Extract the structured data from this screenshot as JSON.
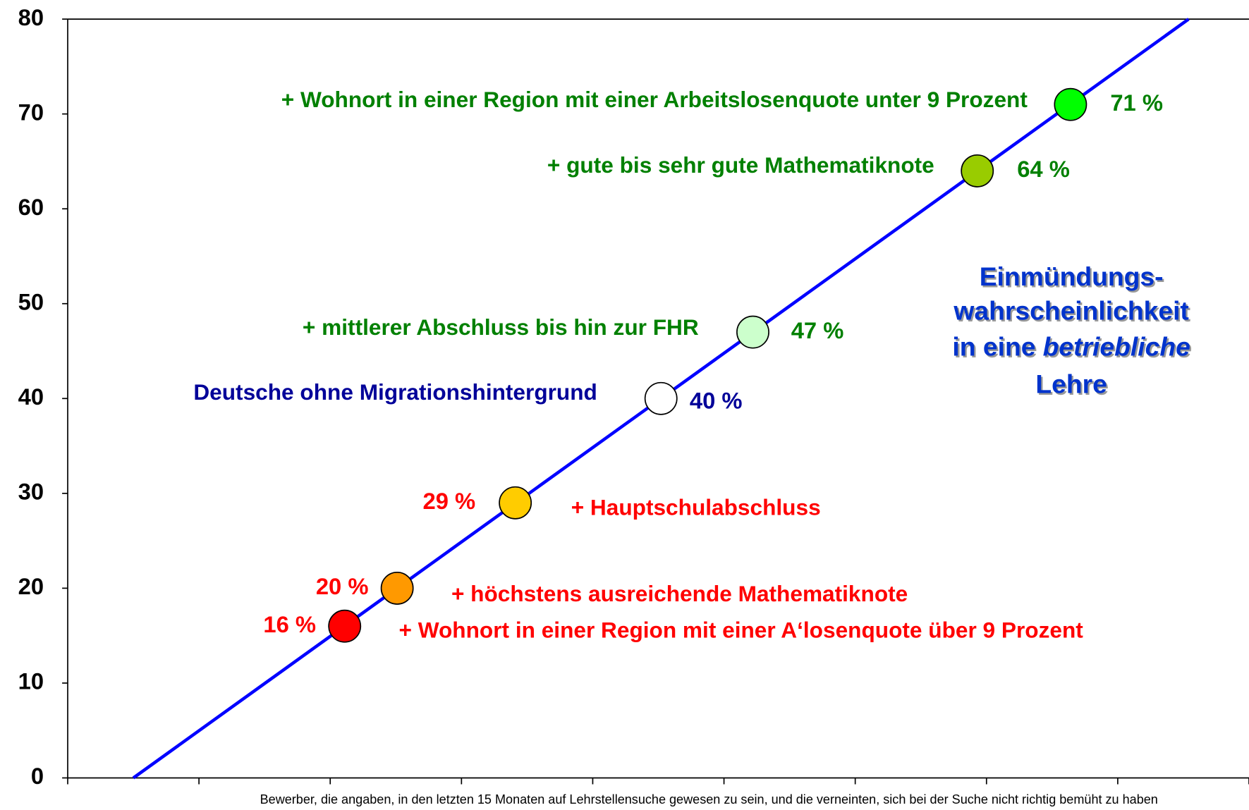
{
  "chart_data": {
    "type": "scatter",
    "x_label": "Bewerber, die angaben, in den letzten 15 Monaten auf Lehrstellensuche gewesen zu sein, und die verneinten, sich bei der Suche nicht richtig bemüht zu haben",
    "x": [
      2.11,
      2.51,
      3.41,
      4.52,
      5.22,
      6.93,
      7.64
    ],
    "values": [
      16,
      20,
      29,
      40,
      47,
      64,
      71
    ],
    "value_labels": [
      "16 %",
      "20 %",
      "29 %",
      "40 %",
      "47 %",
      "64 %",
      "71 %"
    ],
    "colors": [
      "#ff0000",
      "#ff9900",
      "#ffcc00",
      "#ffffff",
      "#ccffcc",
      "#99cc00",
      "#00ff00"
    ],
    "annotations": [
      "+ Wohnort in einer Region mit einer A‘losenquote über 9 Prozent",
      "+ höchstens ausreichende Mathematiknote",
      "+ Hauptschulabschluss",
      "Deutsche ohne Migrationshintergrund",
      "+ mittlerer Abschluss bis hin zur FHR",
      "+ gute bis sehr gute Mathematiknote",
      "+ Wohnort in einer Region mit einer Arbeitslosenquote unter 9 Prozent"
    ],
    "label_colors": [
      "#ff0000",
      "#ff0000",
      "#ff0000",
      "#000099",
      "#008000",
      "#008000",
      "#008000"
    ],
    "trend": {
      "x": [
        0.5,
        8.54
      ],
      "y": [
        0,
        80
      ],
      "color": "#0000ff"
    },
    "side_note": {
      "line1": "Einmündungs-",
      "line2": "wahrscheinlichkeit",
      "line3": "in eine",
      "line3_italic": "betriebliche",
      "line4": "Lehre",
      "color": "#0033cc"
    },
    "xlim": [
      0,
      9
    ],
    "xticks": [
      0,
      1,
      2,
      3,
      4,
      5,
      6,
      7,
      8,
      9
    ],
    "ylim": [
      0,
      80
    ],
    "yticks": [
      0,
      10,
      20,
      30,
      40,
      50,
      60,
      70,
      80
    ]
  }
}
